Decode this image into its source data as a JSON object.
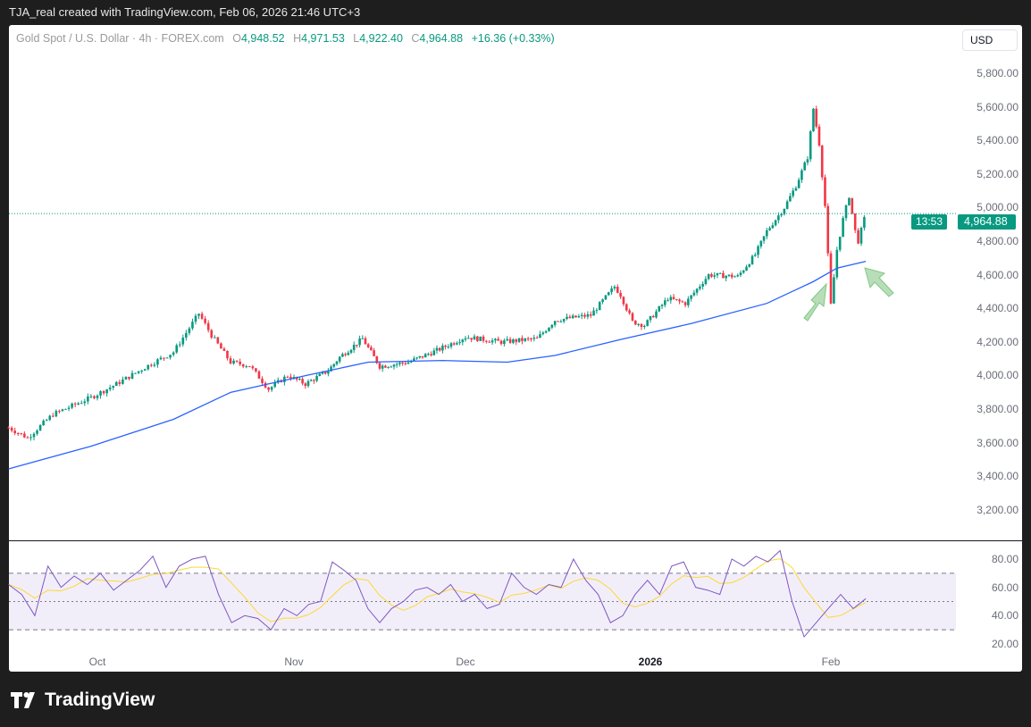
{
  "header": {
    "credit": "TJA_real created with TradingView.com, Feb 06, 2026 21:46 UTC+3"
  },
  "legend": {
    "symbol": "Gold Spot / U.S. Dollar · 4h · FOREX.com",
    "o_label": "O",
    "open": "4,948.52",
    "h_label": "H",
    "high": "4,971.53",
    "l_label": "L",
    "low": "4,922.40",
    "c_label": "C",
    "close": "4,964.88",
    "change": "+16.36 (+0.33%)"
  },
  "currency_button": "USD",
  "last_price": {
    "price": "4,964.88",
    "countdown": "13:53"
  },
  "price_ticks": [
    "5,800.00",
    "5,600.00",
    "5,400.00",
    "5,200.00",
    "5,000.00",
    "4,800.00",
    "4,600.00",
    "4,400.00",
    "4,200.00",
    "4,000.00",
    "3,800.00",
    "3,600.00",
    "3,400.00",
    "3,200.00"
  ],
  "rsi_ticks": [
    "80.00",
    "60.00",
    "40.00",
    "20.00"
  ],
  "time_ticks": [
    "Oct",
    "Nov",
    "Dec",
    "2026",
    "Feb"
  ],
  "logo": "TradingView",
  "colors": {
    "up": "#089981",
    "down": "#f23645",
    "ma": "#2962ff",
    "rsi": "#7e57c2",
    "rsi_ma": "#fdd835"
  },
  "chart_data": {
    "type": "candlestick",
    "symbol": "XAUUSD",
    "interval": "4h",
    "ylim": [
      3100,
      5900
    ],
    "price_path": [
      [
        "2025-09-17",
        3690
      ],
      [
        "2025-09-20",
        3630
      ],
      [
        "2025-09-24",
        3770
      ],
      [
        "2025-09-30",
        3870
      ],
      [
        "2025-10-04",
        3950
      ],
      [
        "2025-10-09",
        4060
      ],
      [
        "2025-10-13",
        4140
      ],
      [
        "2025-10-17",
        4370
      ],
      [
        "2025-10-19",
        4240
      ],
      [
        "2025-10-22",
        4080
      ],
      [
        "2025-10-25",
        4060
      ],
      [
        "2025-10-28",
        3920
      ],
      [
        "2025-10-31",
        4000
      ],
      [
        "2025-11-03",
        3950
      ],
      [
        "2025-11-07",
        4030
      ],
      [
        "2025-11-09",
        4110
      ],
      [
        "2025-11-13",
        4220
      ],
      [
        "2025-11-16",
        4055
      ],
      [
        "2025-11-21",
        4080
      ],
      [
        "2025-11-26",
        4150
      ],
      [
        "2025-12-01",
        4230
      ],
      [
        "2025-12-07",
        4200
      ],
      [
        "2025-12-13",
        4220
      ],
      [
        "2025-12-16",
        4330
      ],
      [
        "2025-12-22",
        4360
      ],
      [
        "2025-12-26",
        4530
      ],
      [
        "2025-12-27",
        4480
      ],
      [
        "2025-12-29",
        4320
      ],
      [
        "2025-12-31",
        4300
      ],
      [
        "2026-01-04",
        4460
      ],
      [
        "2026-01-07",
        4430
      ],
      [
        "2026-01-11",
        4600
      ],
      [
        "2026-01-16",
        4590
      ],
      [
        "2026-01-19",
        4720
      ],
      [
        "2026-01-21",
        4860
      ],
      [
        "2026-01-24",
        5000
      ],
      [
        "2026-01-26",
        5130
      ],
      [
        "2026-01-28",
        5300
      ],
      [
        "2026-01-29",
        5590
      ],
      [
        "2026-01-30",
        5380
      ],
      [
        "2026-01-31",
        5010
      ],
      [
        "2026-02-01",
        4420
      ],
      [
        "2026-02-02",
        4750
      ],
      [
        "2026-02-03",
        4930
      ],
      [
        "2026-02-04",
        5070
      ],
      [
        "2026-02-05",
        4860
      ],
      [
        "2026-02-05T12:00",
        4800
      ],
      [
        "2026-02-06T18:00",
        4964.88
      ]
    ],
    "moving_average": [
      [
        "2025-09-17",
        3445
      ],
      [
        "2025-09-30",
        3580
      ],
      [
        "2025-10-13",
        3740
      ],
      [
        "2025-10-22",
        3900
      ],
      [
        "2025-11-03",
        4000
      ],
      [
        "2025-11-14",
        4080
      ],
      [
        "2025-11-27",
        4090
      ],
      [
        "2025-12-08",
        4080
      ],
      [
        "2025-12-16",
        4120
      ],
      [
        "2025-12-27",
        4215
      ],
      [
        "2026-01-08",
        4310
      ],
      [
        "2026-01-21",
        4430
      ],
      [
        "2026-01-29",
        4560
      ],
      [
        "2026-02-02",
        4640
      ],
      [
        "2026-02-06T18:00",
        4680
      ]
    ],
    "rsi": {
      "start": "2025-09-17",
      "end": "2026-02-06T18:00",
      "levels": [
        70,
        50,
        30
      ],
      "ylim": [
        15,
        90
      ],
      "values": [
        62,
        55,
        40,
        75,
        60,
        68,
        62,
        70,
        58,
        65,
        72,
        82,
        60,
        75,
        80,
        82,
        55,
        35,
        40,
        38,
        30,
        45,
        40,
        48,
        50,
        78,
        72,
        65,
        45,
        35,
        45,
        50,
        58,
        60,
        55,
        62,
        50,
        55,
        45,
        48,
        70,
        60,
        55,
        62,
        60,
        80,
        65,
        55,
        35,
        40,
        55,
        65,
        55,
        75,
        78,
        60,
        58,
        55,
        80,
        75,
        82,
        78,
        86,
        50,
        25,
        35,
        45,
        55,
        45,
        52
      ]
    }
  }
}
